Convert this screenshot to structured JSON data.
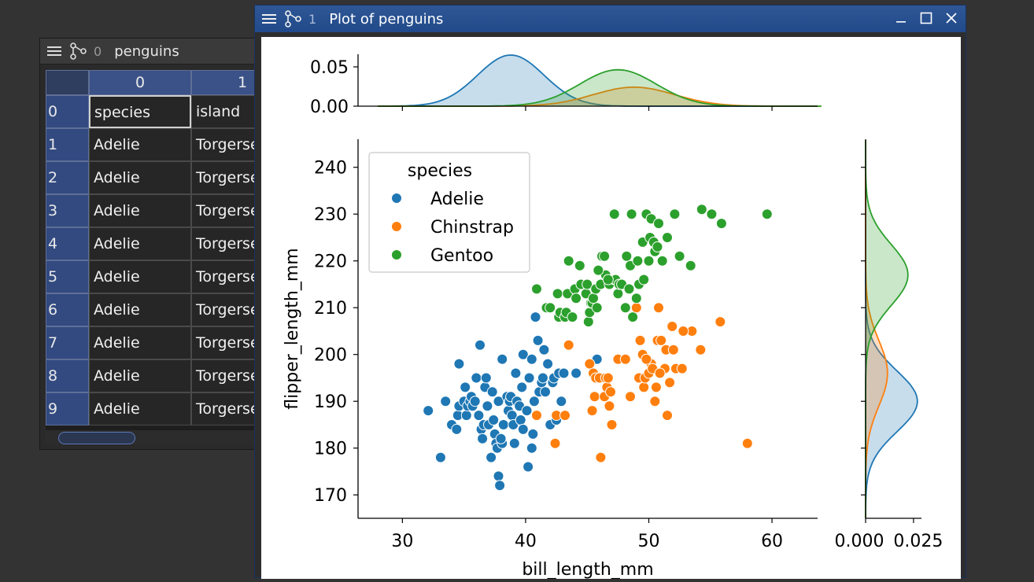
{
  "table_window": {
    "index": "0",
    "title": "penguins",
    "columns": [
      "0",
      "1"
    ],
    "rows": [
      {
        "index": "0",
        "cells": [
          "species",
          "island"
        ]
      },
      {
        "index": "1",
        "cells": [
          "Adelie",
          "Torgersen"
        ]
      },
      {
        "index": "2",
        "cells": [
          "Adelie",
          "Torgersen"
        ]
      },
      {
        "index": "3",
        "cells": [
          "Adelie",
          "Torgersen"
        ]
      },
      {
        "index": "4",
        "cells": [
          "Adelie",
          "Torgersen"
        ]
      },
      {
        "index": "5",
        "cells": [
          "Adelie",
          "Torgersen"
        ]
      },
      {
        "index": "6",
        "cells": [
          "Adelie",
          "Torgersen"
        ]
      },
      {
        "index": "7",
        "cells": [
          "Adelie",
          "Torgersen"
        ]
      },
      {
        "index": "8",
        "cells": [
          "Adelie",
          "Torgersen"
        ]
      },
      {
        "index": "9",
        "cells": [
          "Adelie",
          "Torgersen"
        ]
      }
    ],
    "selected_cell": "0,0"
  },
  "plot_window": {
    "index": "1",
    "title": "Plot of penguins",
    "controls": [
      "minimize-icon",
      "maximize-icon",
      "close-icon"
    ]
  },
  "icons": {
    "menu": "hamburger-menu-icon",
    "graph": "node-graph-icon"
  },
  "chart_data": {
    "type": "scatter",
    "title": "",
    "xlabel": "bill_length_mm",
    "ylabel": "flipper_length_mm",
    "xlim": [
      26.4,
      63.7
    ],
    "ylim": [
      165,
      246
    ],
    "xticks": [
      "30",
      "40",
      "50",
      "60"
    ],
    "yticks": [
      "170",
      "180",
      "190",
      "200",
      "210",
      "220",
      "230",
      "240"
    ],
    "legend": {
      "title": "species",
      "placement": "top-left"
    },
    "marginal_top_yticks": [
      "0.00",
      "0.05"
    ],
    "marginal_right_xticks": [
      "0.000",
      "0.025"
    ],
    "series": [
      {
        "name": "Adelie",
        "color": "#1f77b4",
        "kde_x": {
          "mean": 38.8,
          "sd": 2.7,
          "weight": 0.44
        },
        "kde_y": {
          "mean": 190,
          "sd": 6.5,
          "weight": 0.44
        },
        "points": [
          [
            32.1,
            188
          ],
          [
            33.1,
            178
          ],
          [
            33.5,
            190
          ],
          [
            34,
            185
          ],
          [
            34.4,
            184
          ],
          [
            34.5,
            187
          ],
          [
            34.6,
            198
          ],
          [
            34.6,
            189
          ],
          [
            35,
            190
          ],
          [
            35.1,
            193
          ],
          [
            35.2,
            187
          ],
          [
            35.3,
            189
          ],
          [
            35.5,
            190
          ],
          [
            35.6,
            191
          ],
          [
            35.7,
            189
          ],
          [
            35.9,
            190
          ],
          [
            36,
            195
          ],
          [
            36.2,
            187
          ],
          [
            36.3,
            202
          ],
          [
            36.4,
            184
          ],
          [
            36.5,
            182
          ],
          [
            36.6,
            185
          ],
          [
            36.7,
            193
          ],
          [
            36.8,
            195
          ],
          [
            36.9,
            189
          ],
          [
            37,
            185
          ],
          [
            37.2,
            178
          ],
          [
            37.3,
            192
          ],
          [
            37.5,
            183
          ],
          [
            37.6,
            181
          ],
          [
            37.7,
            180
          ],
          [
            37.8,
            190
          ],
          [
            37.8,
            174
          ],
          [
            37.9,
            172
          ],
          [
            38.1,
            181
          ],
          [
            38.1,
            199
          ],
          [
            38.2,
            185
          ],
          [
            38.5,
            191
          ],
          [
            38.6,
            188
          ],
          [
            38.7,
            190
          ],
          [
            38.8,
            191
          ],
          [
            38.9,
            187
          ],
          [
            39,
            185
          ],
          [
            39.1,
            181
          ],
          [
            39.2,
            196
          ],
          [
            39.3,
            190
          ],
          [
            39.5,
            189
          ],
          [
            39.6,
            186
          ],
          [
            39.7,
            193
          ],
          [
            39.8,
            184
          ],
          [
            40.1,
            188
          ],
          [
            40.2,
            176
          ],
          [
            40.3,
            195
          ],
          [
            40.5,
            180
          ],
          [
            40.6,
            183
          ],
          [
            40.7,
            190
          ],
          [
            40.8,
            208
          ],
          [
            40.9,
            187
          ],
          [
            41,
            203
          ],
          [
            41.1,
            192
          ],
          [
            41.3,
            194
          ],
          [
            41.4,
            195
          ],
          [
            41.5,
            201
          ],
          [
            41.6,
            192
          ],
          [
            41.8,
            198
          ],
          [
            42,
            185
          ],
          [
            42.2,
            194
          ],
          [
            42.3,
            195
          ],
          [
            42.5,
            186
          ],
          [
            42.7,
            196
          ],
          [
            42.9,
            190
          ],
          [
            43.1,
            196
          ],
          [
            43.2,
            187
          ],
          [
            44.1,
            196
          ],
          [
            45.8,
            199
          ],
          [
            37.4,
            186
          ],
          [
            36.2,
            187
          ],
          [
            39.8,
            200
          ],
          [
            38,
            182
          ],
          [
            40.5,
            199
          ]
        ]
      },
      {
        "name": "Chinstrap",
        "color": "#ff7f0e",
        "kde_x": {
          "mean": 48.8,
          "sd": 3.3,
          "weight": 0.2
        },
        "kde_y": {
          "mean": 196,
          "sd": 7,
          "weight": 0.2
        },
        "points": [
          [
            40.9,
            187
          ],
          [
            42.4,
            181
          ],
          [
            42.5,
            187
          ],
          [
            43.2,
            187
          ],
          [
            43.5,
            202
          ],
          [
            45.2,
            198
          ],
          [
            45.4,
            188
          ],
          [
            45.5,
            196
          ],
          [
            45.6,
            191
          ],
          [
            45.7,
            195
          ],
          [
            46,
            195
          ],
          [
            46.1,
            178
          ],
          [
            46.4,
            191
          ],
          [
            46.5,
            195
          ],
          [
            46.6,
            193
          ],
          [
            46.7,
            195
          ],
          [
            46.8,
            189
          ],
          [
            46.9,
            192
          ],
          [
            47,
            185
          ],
          [
            47.5,
            199
          ],
          [
            48.1,
            199
          ],
          [
            48.5,
            191
          ],
          [
            49,
            210
          ],
          [
            49.2,
            195
          ],
          [
            49.3,
            203
          ],
          [
            49.5,
            200
          ],
          [
            49.6,
            193
          ],
          [
            49.7,
            195
          ],
          [
            50,
            196
          ],
          [
            50.2,
            198
          ],
          [
            50.3,
            197
          ],
          [
            50.5,
            190
          ],
          [
            50.6,
            193
          ],
          [
            50.7,
            203
          ],
          [
            50.8,
            210
          ],
          [
            51,
            203
          ],
          [
            51.3,
            197
          ],
          [
            51.4,
            201
          ],
          [
            51.5,
            187
          ],
          [
            51.7,
            194
          ],
          [
            51.9,
            206
          ],
          [
            52,
            201
          ],
          [
            52.2,
            197
          ],
          [
            52.7,
            197
          ],
          [
            53.5,
            205
          ],
          [
            54.2,
            201
          ],
          [
            55.8,
            207
          ],
          [
            58,
            181
          ],
          [
            49.8,
            199
          ],
          [
            50.9,
            196
          ],
          [
            52.8,
            205
          ]
        ]
      },
      {
        "name": "Gentoo",
        "color": "#2ca02c",
        "kde_x": {
          "mean": 47.5,
          "sd": 3.1,
          "weight": 0.36
        },
        "kde_y": {
          "mean": 217,
          "sd": 6.5,
          "weight": 0.36
        },
        "points": [
          [
            40.9,
            214
          ],
          [
            41.7,
            210
          ],
          [
            42,
            210
          ],
          [
            42.6,
            213
          ],
          [
            42.7,
            208
          ],
          [
            42.8,
            209
          ],
          [
            43.2,
            208
          ],
          [
            43.3,
            209
          ],
          [
            43.4,
            213
          ],
          [
            43.5,
            220
          ],
          [
            43.8,
            208
          ],
          [
            44,
            214
          ],
          [
            44.4,
            219
          ],
          [
            44.5,
            215
          ],
          [
            44.9,
            213
          ],
          [
            45,
            215
          ],
          [
            45.1,
            207
          ],
          [
            45.2,
            209
          ],
          [
            45.3,
            211
          ],
          [
            45.4,
            211
          ],
          [
            45.5,
            212
          ],
          [
            45.7,
            214
          ],
          [
            45.8,
            210
          ],
          [
            46.1,
            215
          ],
          [
            46.2,
            221
          ],
          [
            46.4,
            221
          ],
          [
            46.5,
            217
          ],
          [
            46.8,
            215
          ],
          [
            47.2,
            216
          ],
          [
            47.3,
            216
          ],
          [
            47.5,
            213
          ],
          [
            47.6,
            215
          ],
          [
            47.8,
            215
          ],
          [
            48.1,
            210
          ],
          [
            48.2,
            221
          ],
          [
            48.4,
            214
          ],
          [
            48.5,
            219
          ],
          [
            48.7,
            208
          ],
          [
            49,
            212
          ],
          [
            49.1,
            220
          ],
          [
            49.2,
            215
          ],
          [
            49.5,
            224
          ],
          [
            49.6,
            216
          ],
          [
            49.8,
            230
          ],
          [
            50,
            220
          ],
          [
            50.1,
            225
          ],
          [
            50.2,
            229
          ],
          [
            50.4,
            224
          ],
          [
            50.5,
            222
          ],
          [
            50.7,
            223
          ],
          [
            50.8,
            228
          ],
          [
            51.1,
            220
          ],
          [
            51.5,
            225
          ],
          [
            52.1,
            230
          ],
          [
            52.5,
            221
          ],
          [
            53.4,
            219
          ],
          [
            54.3,
            231
          ],
          [
            55.1,
            230
          ],
          [
            55.9,
            228
          ],
          [
            59.6,
            230
          ],
          [
            48.6,
            230
          ],
          [
            47.2,
            230
          ],
          [
            46.7,
            216
          ],
          [
            44.1,
            212
          ],
          [
            45.9,
            218
          ]
        ]
      }
    ]
  }
}
